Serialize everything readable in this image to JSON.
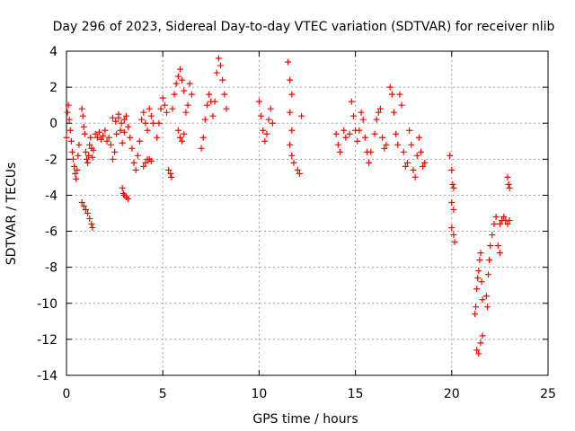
{
  "chart_data": {
    "type": "scatter",
    "title": "Day 296 of 2023, Sidereal Day-to-day VTEC variation (SDTVAR) for receiver nlib",
    "xlabel": "GPS time / hours",
    "ylabel": "SDTVAR / TECUs",
    "xlim": [
      0,
      25
    ],
    "ylim": [
      -14,
      4
    ],
    "xticks": [
      0,
      5,
      10,
      15,
      20,
      25
    ],
    "yticks": [
      -14,
      -12,
      -10,
      -8,
      -6,
      -4,
      -2,
      0,
      2,
      4
    ],
    "grid": true,
    "marker": "+",
    "color": "#ff0000",
    "series": [
      {
        "name": "SDTVAR",
        "points": [
          [
            0.0,
            -0.8
          ],
          [
            0.05,
            0.6
          ],
          [
            0.1,
            1.0
          ],
          [
            0.15,
            0.2
          ],
          [
            0.2,
            -0.4
          ],
          [
            0.25,
            -1.0
          ],
          [
            0.3,
            -1.6
          ],
          [
            0.35,
            -2.0
          ],
          [
            0.4,
            -2.4
          ],
          [
            0.45,
            -2.8
          ],
          [
            0.5,
            -3.1
          ],
          [
            0.55,
            -2.6
          ],
          [
            0.6,
            -1.8
          ],
          [
            0.65,
            -1.2
          ],
          [
            0.8,
            0.8
          ],
          [
            0.85,
            0.4
          ],
          [
            0.9,
            -0.2
          ],
          [
            0.95,
            -0.6
          ],
          [
            1.0,
            -1.6
          ],
          [
            1.05,
            -2.0
          ],
          [
            1.1,
            -2.2
          ],
          [
            1.15,
            -1.8
          ],
          [
            1.2,
            -1.2
          ],
          [
            1.25,
            -0.8
          ],
          [
            1.3,
            -1.4
          ],
          [
            1.35,
            -1.9
          ],
          [
            1.4,
            -1.5
          ],
          [
            0.8,
            -4.4
          ],
          [
            0.9,
            -4.6
          ],
          [
            1.0,
            -4.8
          ],
          [
            1.1,
            -5.0
          ],
          [
            1.2,
            -5.3
          ],
          [
            1.3,
            -5.6
          ],
          [
            1.35,
            -5.8
          ],
          [
            1.5,
            -0.6
          ],
          [
            1.6,
            -0.8
          ],
          [
            1.7,
            -0.5
          ],
          [
            1.8,
            -0.9
          ],
          [
            1.9,
            -0.7
          ],
          [
            2.0,
            -0.4
          ],
          [
            2.1,
            -1.0
          ],
          [
            2.2,
            -0.8
          ],
          [
            2.3,
            -1.2
          ],
          [
            2.4,
            -2.0
          ],
          [
            2.5,
            -1.6
          ],
          [
            2.6,
            -0.6
          ],
          [
            2.7,
            0.3
          ],
          [
            2.8,
            -0.4
          ],
          [
            2.9,
            -1.1
          ],
          [
            3.0,
            -0.5
          ],
          [
            2.4,
            0.3
          ],
          [
            2.55,
            0.1
          ],
          [
            2.7,
            0.5
          ],
          [
            2.85,
            0.0
          ],
          [
            3.0,
            0.2
          ],
          [
            2.9,
            -3.6
          ],
          [
            2.95,
            -3.9
          ],
          [
            3.0,
            -4.0
          ],
          [
            3.1,
            -4.1
          ],
          [
            3.2,
            -4.2
          ],
          [
            3.1,
            0.4
          ],
          [
            3.2,
            -0.2
          ],
          [
            3.3,
            -0.8
          ],
          [
            3.4,
            -1.4
          ],
          [
            3.5,
            -2.2
          ],
          [
            3.6,
            -2.6
          ],
          [
            3.7,
            -1.8
          ],
          [
            3.8,
            -1.0
          ],
          [
            3.9,
            0.2
          ],
          [
            4.0,
            0.6
          ],
          [
            4.1,
            0.0
          ],
          [
            4.2,
            -0.4
          ],
          [
            4.3,
            0.8
          ],
          [
            4.4,
            0.4
          ],
          [
            4.5,
            0.0
          ],
          [
            4.0,
            -2.4
          ],
          [
            4.1,
            -2.2
          ],
          [
            4.2,
            -2.0
          ],
          [
            4.3,
            -2.0
          ],
          [
            4.4,
            -2.1
          ],
          [
            4.7,
            -0.8
          ],
          [
            4.8,
            0.0
          ],
          [
            4.9,
            0.8
          ],
          [
            5.0,
            1.4
          ],
          [
            5.1,
            1.0
          ],
          [
            5.2,
            0.6
          ],
          [
            5.3,
            -2.6
          ],
          [
            5.4,
            -2.8
          ],
          [
            5.45,
            -3.0
          ],
          [
            5.5,
            0.8
          ],
          [
            5.6,
            1.6
          ],
          [
            5.7,
            2.2
          ],
          [
            5.8,
            2.6
          ],
          [
            5.9,
            3.0
          ],
          [
            6.0,
            2.4
          ],
          [
            6.1,
            1.8
          ],
          [
            6.2,
            0.6
          ],
          [
            6.3,
            1.0
          ],
          [
            6.4,
            2.2
          ],
          [
            6.5,
            1.6
          ],
          [
            5.8,
            -0.4
          ],
          [
            5.9,
            -0.8
          ],
          [
            6.0,
            -1.0
          ],
          [
            6.1,
            -0.6
          ],
          [
            7.0,
            -1.4
          ],
          [
            7.1,
            -0.8
          ],
          [
            7.2,
            0.2
          ],
          [
            7.3,
            1.0
          ],
          [
            7.4,
            1.6
          ],
          [
            7.5,
            1.2
          ],
          [
            7.6,
            0.4
          ],
          [
            7.7,
            1.2
          ],
          [
            7.8,
            2.8
          ],
          [
            7.9,
            3.6
          ],
          [
            8.0,
            3.2
          ],
          [
            8.1,
            2.4
          ],
          [
            8.2,
            1.6
          ],
          [
            8.3,
            0.8
          ],
          [
            10.0,
            1.2
          ],
          [
            10.1,
            0.4
          ],
          [
            10.2,
            -0.4
          ],
          [
            10.3,
            -1.0
          ],
          [
            10.4,
            -0.6
          ],
          [
            10.5,
            0.2
          ],
          [
            10.6,
            0.8
          ],
          [
            10.7,
            0.0
          ],
          [
            11.5,
            3.4
          ],
          [
            11.6,
            2.4
          ],
          [
            11.7,
            1.6
          ],
          [
            11.6,
            0.6
          ],
          [
            11.7,
            -0.4
          ],
          [
            11.6,
            -1.2
          ],
          [
            11.7,
            -1.8
          ],
          [
            11.8,
            -2.2
          ],
          [
            12.0,
            -2.6
          ],
          [
            12.1,
            -2.8
          ],
          [
            12.2,
            0.4
          ],
          [
            14.0,
            -0.6
          ],
          [
            14.1,
            -1.2
          ],
          [
            14.2,
            -1.6
          ],
          [
            14.4,
            -0.4
          ],
          [
            14.5,
            -0.8
          ],
          [
            14.7,
            -0.6
          ],
          [
            14.8,
            1.2
          ],
          [
            14.9,
            0.4
          ],
          [
            15.0,
            -0.4
          ],
          [
            15.1,
            -1.0
          ],
          [
            15.2,
            -0.4
          ],
          [
            15.3,
            0.6
          ],
          [
            15.4,
            0.2
          ],
          [
            15.5,
            -0.8
          ],
          [
            15.6,
            -1.6
          ],
          [
            15.7,
            -2.2
          ],
          [
            15.8,
            -1.6
          ],
          [
            16.0,
            -0.6
          ],
          [
            16.1,
            0.2
          ],
          [
            16.2,
            0.6
          ],
          [
            16.3,
            0.8
          ],
          [
            16.4,
            -0.8
          ],
          [
            16.5,
            -1.4
          ],
          [
            16.6,
            -1.2
          ],
          [
            16.8,
            2.0
          ],
          [
            16.9,
            1.6
          ],
          [
            17.0,
            0.6
          ],
          [
            17.1,
            -0.6
          ],
          [
            17.2,
            -1.2
          ],
          [
            17.3,
            1.6
          ],
          [
            17.4,
            1.0
          ],
          [
            17.5,
            -1.6
          ],
          [
            17.6,
            -2.4
          ],
          [
            17.7,
            -2.2
          ],
          [
            17.8,
            -0.4
          ],
          [
            17.9,
            -1.2
          ],
          [
            18.0,
            -2.6
          ],
          [
            18.1,
            -3.0
          ],
          [
            18.2,
            -1.8
          ],
          [
            18.3,
            -0.8
          ],
          [
            18.4,
            -1.6
          ],
          [
            18.5,
            -2.4
          ],
          [
            18.6,
            -2.2
          ],
          [
            19.9,
            -1.8
          ],
          [
            20.0,
            -2.6
          ],
          [
            20.05,
            -3.4
          ],
          [
            20.1,
            -3.6
          ],
          [
            20.0,
            -4.4
          ],
          [
            20.1,
            -4.8
          ],
          [
            20.0,
            -5.8
          ],
          [
            20.1,
            -6.2
          ],
          [
            20.15,
            -6.6
          ],
          [
            21.2,
            -10.6
          ],
          [
            21.25,
            -10.2
          ],
          [
            21.3,
            -9.2
          ],
          [
            21.35,
            -8.6
          ],
          [
            21.4,
            -8.2
          ],
          [
            21.45,
            -7.6
          ],
          [
            21.5,
            -7.2
          ],
          [
            21.55,
            -8.8
          ],
          [
            21.6,
            -9.8
          ],
          [
            21.3,
            -12.6
          ],
          [
            21.4,
            -12.8
          ],
          [
            21.5,
            -12.2
          ],
          [
            21.6,
            -11.8
          ],
          [
            21.8,
            -9.6
          ],
          [
            21.85,
            -10.2
          ],
          [
            21.9,
            -8.4
          ],
          [
            21.95,
            -7.6
          ],
          [
            22.0,
            -6.8
          ],
          [
            22.1,
            -6.2
          ],
          [
            22.2,
            -5.6
          ],
          [
            22.3,
            -5.2
          ],
          [
            22.4,
            -6.8
          ],
          [
            22.5,
            -7.2
          ],
          [
            22.5,
            -5.6
          ],
          [
            22.6,
            -5.4
          ],
          [
            22.7,
            -5.2
          ],
          [
            22.8,
            -5.4
          ],
          [
            22.9,
            -5.6
          ],
          [
            23.0,
            -5.4
          ],
          [
            22.9,
            -3.0
          ],
          [
            22.95,
            -3.4
          ],
          [
            23.0,
            -3.6
          ]
        ]
      }
    ]
  }
}
